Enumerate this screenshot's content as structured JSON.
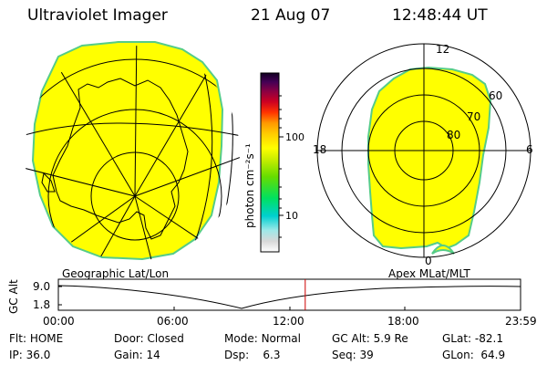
{
  "header": {
    "instrument": "Ultraviolet Imager",
    "date": "21 Aug 07",
    "time": "12:48:44 UT"
  },
  "left_map": {
    "caption": "Geographic Lat/Lon"
  },
  "right_map": {
    "caption": "Apex MLat/MLT",
    "mlt_labels": {
      "top": "12",
      "left": "18",
      "right": "6",
      "bottom": "0"
    },
    "lat_labels": [
      "60",
      "70",
      "80"
    ]
  },
  "colorbar": {
    "unit_label": "photon cm⁻²s⁻¹",
    "ticks": [
      "100",
      "10"
    ]
  },
  "timeline": {
    "ylabel": "GC Alt",
    "y_ticks": [
      "9.0",
      "1.8"
    ],
    "x_ticks": [
      "00:00",
      "06:00",
      "12:00",
      "18:00",
      "23:59"
    ],
    "current_time_hours": 12.81
  },
  "status": {
    "flt": {
      "label": "Flt:",
      "value": "HOME"
    },
    "ip": {
      "label": "IP:",
      "value": "36.0"
    },
    "door": {
      "label": "Door:",
      "value": "Closed"
    },
    "gain": {
      "label": "Gain:",
      "value": "14"
    },
    "mode": {
      "label": "Mode:",
      "value": "Normal"
    },
    "dsp": {
      "label": "Dsp:",
      "value": "6.3"
    },
    "gcalt": {
      "label": "GC Alt:",
      "value": "5.9 Re"
    },
    "seq": {
      "label": "Seq:",
      "value": "39"
    },
    "glat": {
      "label": "GLat:",
      "value": "-82.1"
    },
    "glon": {
      "label": "GLon:",
      "value": "64.9"
    }
  },
  "colors": {
    "aurora_fill": "#ffff00",
    "aurora_edge": "#55cc88",
    "marker": "#cc0000"
  }
}
